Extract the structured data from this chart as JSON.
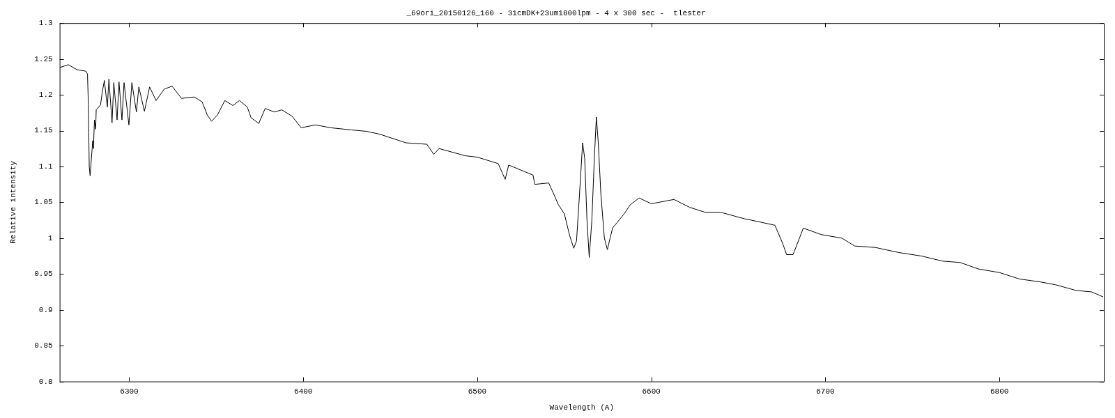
{
  "chart_data": {
    "type": "line",
    "title": "_69ori_20150126_160 - 31cmDK+23um1800lpm - 4 x 300 sec -  tlester",
    "xlabel": "Wavelength (A)",
    "ylabel": "Relative intensity",
    "xlim": [
      6260,
      6860
    ],
    "ylim": [
      0.8,
      1.3
    ],
    "xticks": [
      6300,
      6400,
      6500,
      6600,
      6700,
      6800
    ],
    "yticks": [
      0.8,
      0.85,
      0.9,
      0.95,
      1,
      1.05,
      1.1,
      1.15,
      1.2,
      1.25,
      1.3
    ],
    "grid": false,
    "legend": false,
    "series": [
      {
        "color": "#000000",
        "x": [
          6260,
          6265,
          6270,
          6275,
          6276,
          6276.5,
          6277,
          6277.5,
          6279,
          6279.4,
          6280,
          6280.7,
          6281,
          6283.5,
          6284.5,
          6285.7,
          6287.4,
          6288.3,
          6290.1,
          6291.1,
          6293,
          6294.1,
          6295.8,
          6297,
          6299.8,
          6301.5,
          6304.1,
          6305.5,
          6308.7,
          6311.7,
          6315.4,
          6320.1,
          6324.6,
          6330,
          6337.4,
          6341.9,
          6344.8,
          6347.3,
          6350.7,
          6354.9,
          6359.6,
          6363.3,
          6367.8,
          6370,
          6374.4,
          6378.1,
          6383.3,
          6387.7,
          6393.6,
          6398.8,
          6407,
          6415.8,
          6427.7,
          6436.5,
          6444,
          6459,
          6471,
          6475,
          6478,
          6493,
          6500,
          6512,
          6516,
          6518,
          6532,
          6533,
          6541,
          6544,
          6546.5,
          6550,
          6553,
          6555.4,
          6557,
          6558.7,
          6560.5,
          6561.7,
          6563,
          6564.3,
          6565.8,
          6567.3,
          6568.4,
          6569.5,
          6571,
          6573,
          6574.7,
          6577.7,
          6584.4,
          6588,
          6593,
          6600,
          6613,
          6622,
          6631,
          6640,
          6653.5,
          6657.7,
          6671,
          6675.4,
          6677.7,
          6681.4,
          6684.3,
          6687.3,
          6697.6,
          6709.5,
          6716.9,
          6728.7,
          6742,
          6755.3,
          6767.2,
          6777.5,
          6787.9,
          6800,
          6811.5,
          6823.4,
          6832.2,
          6844.1,
          6853,
          6859.6
        ],
        "values": [
          1.238,
          1.242,
          1.235,
          1.233,
          1.229,
          1.186,
          1.1,
          1.087,
          1.136,
          1.125,
          1.165,
          1.152,
          1.179,
          1.186,
          1.204,
          1.22,
          1.183,
          1.222,
          1.161,
          1.217,
          1.165,
          1.218,
          1.165,
          1.217,
          1.158,
          1.217,
          1.176,
          1.211,
          1.177,
          1.211,
          1.192,
          1.208,
          1.212,
          1.195,
          1.197,
          1.19,
          1.172,
          1.163,
          1.172,
          1.192,
          1.185,
          1.192,
          1.183,
          1.168,
          1.16,
          1.181,
          1.176,
          1.179,
          1.17,
          1.154,
          1.158,
          1.154,
          1.151,
          1.149,
          1.145,
          1.133,
          1.131,
          1.117,
          1.125,
          1.115,
          1.113,
          1.104,
          1.082,
          1.102,
          1.088,
          1.075,
          1.077,
          1.061,
          1.047,
          1.034,
          1.004,
          0.986,
          0.996,
          1.061,
          1.133,
          1.111,
          1.025,
          0.973,
          1.025,
          1.115,
          1.169,
          1.133,
          1.061,
          1.0,
          0.984,
          1.014,
          1.034,
          1.047,
          1.056,
          1.048,
          1.054,
          1.043,
          1.036,
          1.036,
          1.027,
          1.025,
          1.018,
          0.993,
          0.977,
          0.977,
          0.995,
          1.014,
          1.005,
          1.0,
          0.989,
          0.987,
          0.98,
          0.975,
          0.968,
          0.966,
          0.957,
          0.952,
          0.943,
          0.939,
          0.935,
          0.927,
          0.925,
          0.918
        ]
      }
    ]
  }
}
